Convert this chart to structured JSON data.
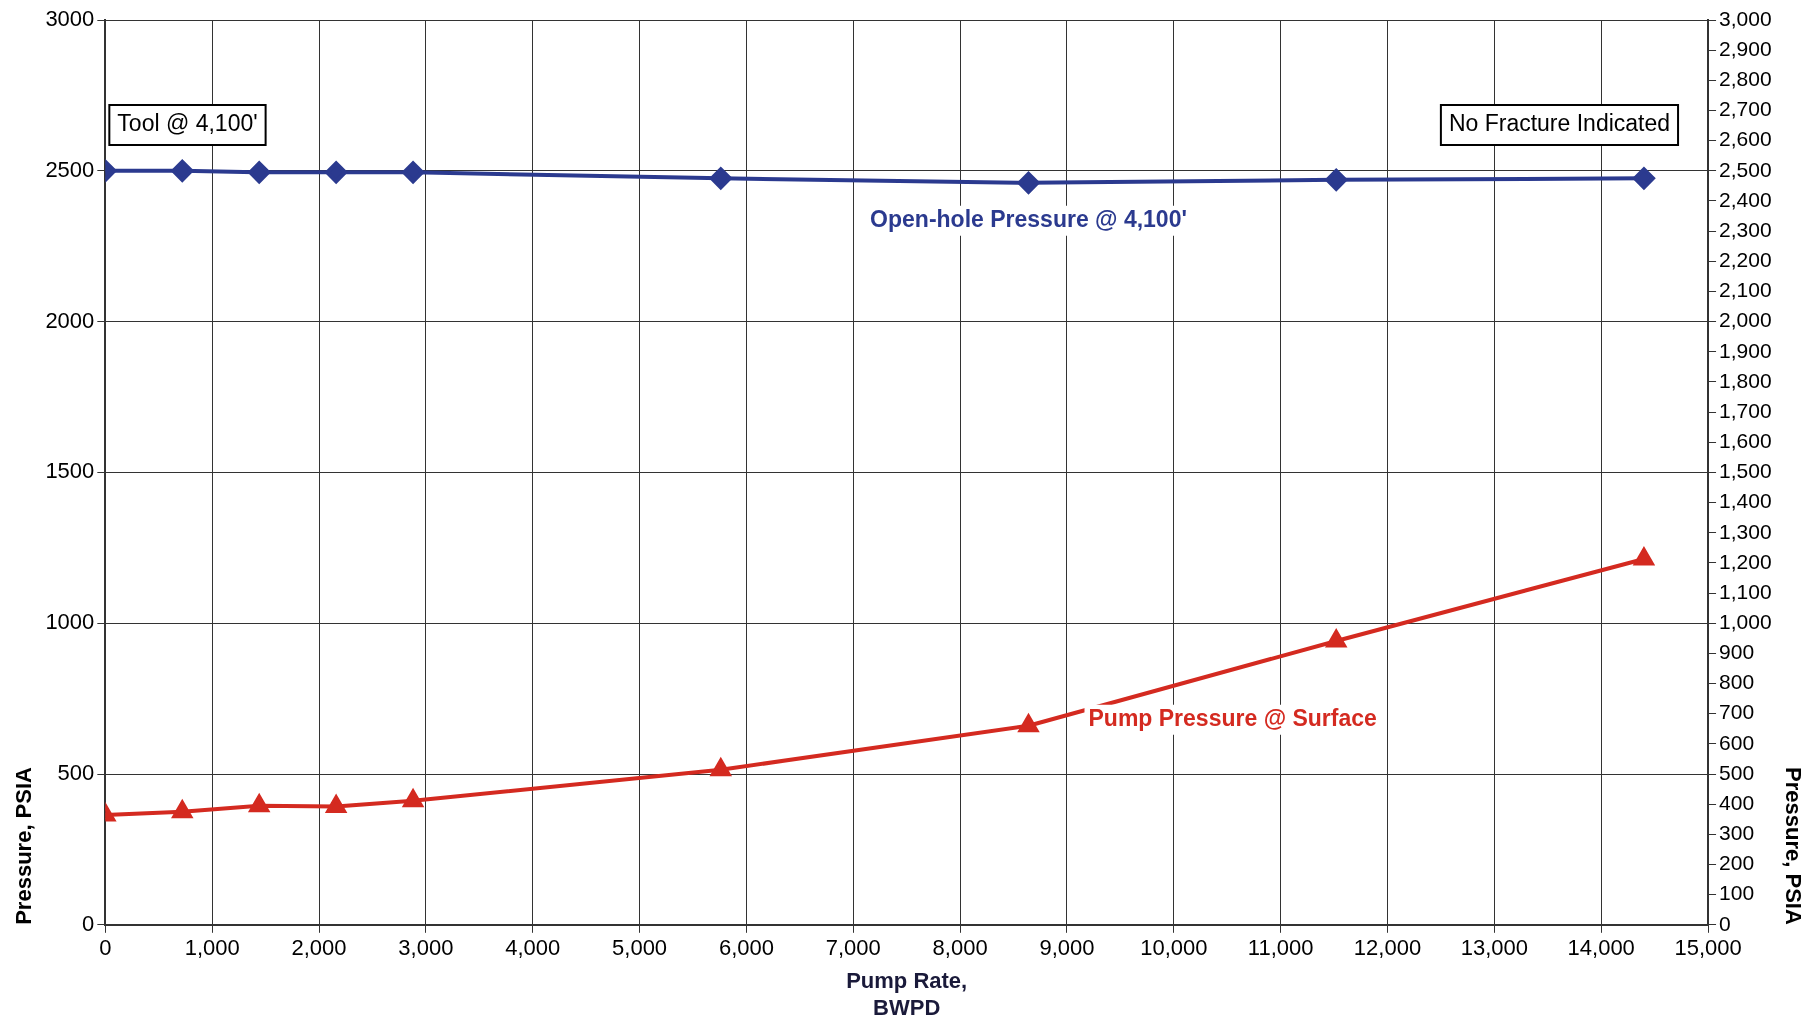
{
  "chart_data": {
    "type": "line",
    "xlabel": "Pump Rate,\nBWPD",
    "ylabel": "Pressure, PSIA",
    "y2label": "Pressure, PSIA",
    "xlim": [
      0,
      15000
    ],
    "xticks": [
      0,
      {
        "value": 1000,
        "label": "1,000"
      },
      {
        "value": 2000,
        "label": "2,000"
      },
      {
        "value": 3000,
        "label": "3,000"
      },
      {
        "value": 4000,
        "label": "4,000"
      },
      {
        "value": 5000,
        "label": "5,000"
      },
      {
        "value": 6000,
        "label": "6,000"
      },
      {
        "value": 7000,
        "label": "7,000"
      },
      {
        "value": 8000,
        "label": "8,000"
      },
      {
        "value": 9000,
        "label": "9,000"
      },
      {
        "value": 10000,
        "label": "10,000"
      },
      {
        "value": 11000,
        "label": "11,000"
      },
      {
        "value": 12000,
        "label": "12,000"
      },
      {
        "value": 13000,
        "label": "13,000"
      },
      {
        "value": 14000,
        "label": "14,000"
      },
      {
        "value": 15000,
        "label": "15,000"
      }
    ],
    "ylim": [
      0,
      3000
    ],
    "yticks": [
      0,
      500,
      1000,
      1500,
      2000,
      2500,
      3000
    ],
    "y2lim": [
      0,
      3000
    ],
    "y2ticks": [
      0,
      100,
      200,
      300,
      400,
      500,
      600,
      700,
      800,
      900,
      {
        "value": 1000,
        "label": "1,000"
      },
      {
        "value": 1100,
        "label": "1,100"
      },
      {
        "value": 1200,
        "label": "1,200"
      },
      {
        "value": 1300,
        "label": "1,300"
      },
      {
        "value": 1400,
        "label": "1,400"
      },
      {
        "value": 1500,
        "label": "1,500"
      },
      {
        "value": 1600,
        "label": "1,600"
      },
      {
        "value": 1700,
        "label": "1,700"
      },
      {
        "value": 1800,
        "label": "1,800"
      },
      {
        "value": 1900,
        "label": "1,900"
      },
      {
        "value": 2000,
        "label": "2,000"
      },
      {
        "value": 2100,
        "label": "2,100"
      },
      {
        "value": 2200,
        "label": "2,200"
      },
      {
        "value": 2300,
        "label": "2,300"
      },
      {
        "value": 2400,
        "label": "2,400"
      },
      {
        "value": 2500,
        "label": "2,500"
      },
      {
        "value": 2600,
        "label": "2,600"
      },
      {
        "value": 2700,
        "label": "2,700"
      },
      {
        "value": 2800,
        "label": "2,800"
      },
      {
        "value": 2900,
        "label": "2,900"
      },
      {
        "value": 3000,
        "label": "3,000"
      }
    ],
    "x": [
      0,
      720,
      1440,
      2160,
      2880,
      5760,
      8640,
      11520,
      14400
    ],
    "series": [
      {
        "name": "Open-hole Pressure @ 4,100'",
        "color": "#2b3a8f",
        "marker": "diamond",
        "values": [
          2500,
          2500,
          2495,
          2495,
          2495,
          2475,
          2460,
          2470,
          2475
        ]
      },
      {
        "name": "Pump Pressure @ Surface",
        "color": "#d42a20",
        "marker": "triangle",
        "values": [
          364,
          375,
          395,
          392,
          411,
          514,
          660,
          941,
          1213
        ]
      }
    ],
    "annotations": [
      "Tool @ 4,100'",
      "No Fracture Indicated"
    ],
    "grid": true,
    "legend": false,
    "line_style": "solid"
  }
}
